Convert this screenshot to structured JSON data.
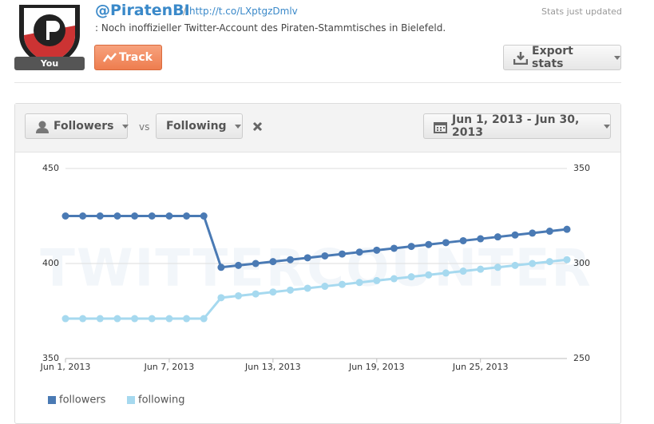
{
  "header": {
    "handle": "@PiratenBI",
    "separator": "/",
    "url": "http://t.co/LXptgzDmlv",
    "bio": ": Noch inoffizieller Twitter-Account des Piraten-Stammtisches in Bielefeld.",
    "status": "Stats just updated",
    "avatar_badge": "You",
    "track_button": "Track",
    "export_button": "Export stats"
  },
  "toolbar": {
    "metric_1": "Followers",
    "vs": "vs",
    "metric_2": "Following",
    "date_range": "Jun 1, 2013 - Jun 30, 2013"
  },
  "chart_data": {
    "type": "line",
    "watermark": "TWITTERCOUNTER",
    "categories": [
      "Jun 1, 2013",
      null,
      null,
      null,
      null,
      null,
      "Jun 7, 2013",
      null,
      null,
      null,
      null,
      null,
      "Jun 13, 2013",
      null,
      null,
      null,
      null,
      null,
      "Jun 19, 2013",
      null,
      null,
      null,
      null,
      null,
      "Jun 25, 2013",
      null,
      null,
      null,
      null,
      null
    ],
    "ylim": [
      350,
      450
    ],
    "yticks": [
      350,
      400,
      450
    ],
    "y2lim": [
      250,
      350
    ],
    "y2ticks": [
      250,
      300,
      350
    ],
    "grid": true,
    "series": [
      {
        "name": "followers",
        "color": "#4a7ab4",
        "values": [
          425,
          425,
          425,
          425,
          425,
          425,
          425,
          425,
          425,
          398,
          399,
          400,
          401,
          402,
          403,
          404,
          405,
          406,
          407,
          408,
          409,
          410,
          411,
          412,
          413,
          414,
          415,
          416,
          417,
          418
        ]
      },
      {
        "name": "following",
        "color": "#a6d9ef",
        "axis": "y2",
        "values": [
          271,
          271,
          271,
          271,
          271,
          271,
          271,
          271,
          271,
          282,
          283,
          284,
          285,
          286,
          287,
          288,
          289,
          290,
          291,
          292,
          293,
          294,
          295,
          296,
          297,
          298,
          299,
          300,
          301,
          302
        ]
      }
    ]
  }
}
